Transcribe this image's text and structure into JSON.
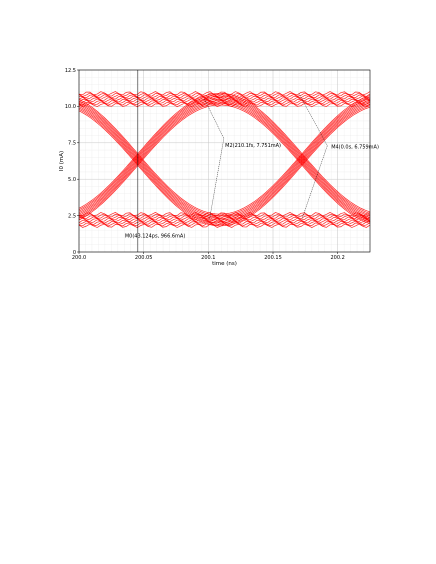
{
  "chart_data": {
    "type": "line",
    "title": "",
    "xlabel": "time (ns)",
    "ylabel": "I0 (mA)",
    "xlim": [
      200.0,
      200.225
    ],
    "ylim": [
      0,
      12.5
    ],
    "x_ticks": [
      {
        "value": 200.0,
        "label": "200.0"
      },
      {
        "value": 200.05,
        "label": "200.05"
      },
      {
        "value": 200.1,
        "label": "200.1"
      },
      {
        "value": 200.15,
        "label": "200.15"
      },
      {
        "value": 200.2,
        "label": "200.2"
      }
    ],
    "y_ticks": [
      {
        "value": 0,
        "label": "0"
      },
      {
        "value": 2.5,
        "label": "2.5"
      },
      {
        "value": 5.0,
        "label": "5.0"
      },
      {
        "value": 7.5,
        "label": "7.5"
      },
      {
        "value": 10.0,
        "label": "10.0"
      },
      {
        "value": 12.5,
        "label": "12.5"
      }
    ],
    "grid": true,
    "series_color": "#ff0000",
    "eye": {
      "high_level": 10.5,
      "low_level": 2.2,
      "crossings_x": [
        200.0455,
        200.1725
      ],
      "bit_period_ns": 0.127,
      "edge_span_ns": 0.127,
      "band_width_mA": 0.8
    },
    "cursors": [
      {
        "label": "M0(43.124ps, 966.6mA)",
        "x": 200.0455
      },
      {
        "label": "M2(210.1fs, 7.751mA)",
        "x": 200.101
      },
      {
        "label": "M4(0.0s, 6.759mA)",
        "x": 200.1725
      }
    ]
  }
}
